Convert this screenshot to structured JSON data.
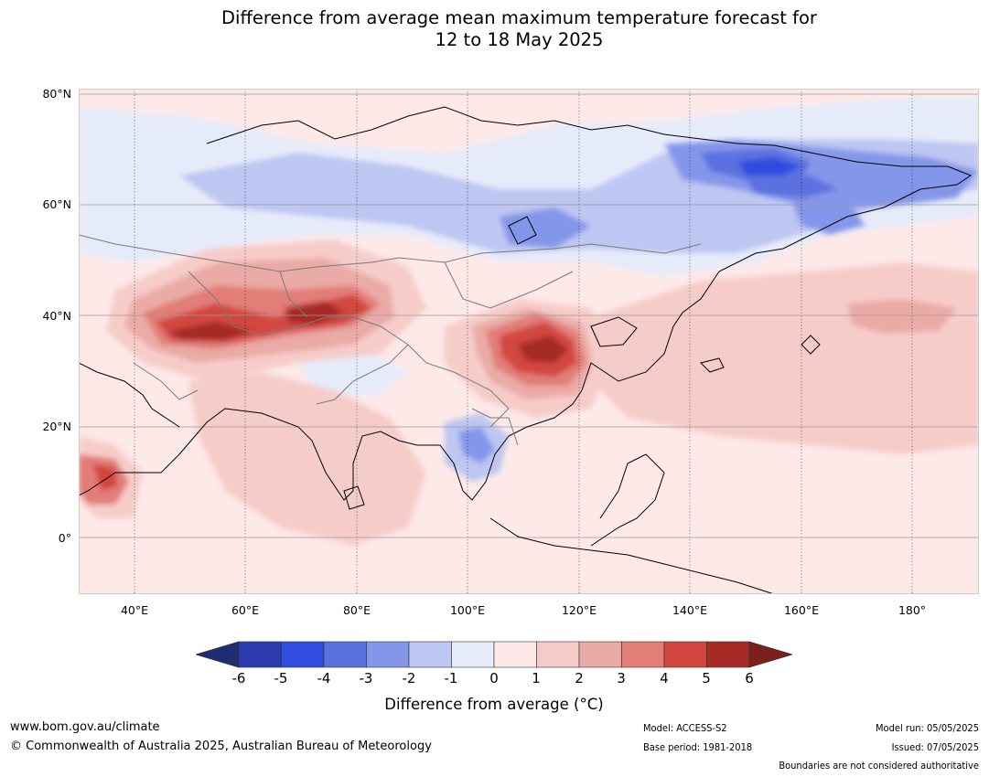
{
  "title": {
    "line1": "Difference from average mean maximum temperature forecast for",
    "line2": "12 to 18 May 2025"
  },
  "map": {
    "lat_labels": [
      "80°N",
      "60°N",
      "40°N",
      "20°N",
      "0°"
    ],
    "lon_labels": [
      "40°E",
      "60°E",
      "80°E",
      "100°E",
      "120°E",
      "140°E",
      "160°E",
      "180°"
    ],
    "extent": {
      "lon_min": 30,
      "lon_max": 192,
      "lat_min": -10,
      "lat_max": 81
    },
    "regions": [
      {
        "name": "Northern Siberia cool anomaly",
        "value": -3
      },
      {
        "name": "Eastern Siberia cool anomaly core",
        "value": -5
      },
      {
        "name": "Central Asia warm anomaly",
        "value": 5
      },
      {
        "name": "Eastern China warm anomaly",
        "value": 5
      },
      {
        "name": "Indochina cool anomaly",
        "value": -3
      },
      {
        "name": "Horn of Africa warm anomaly",
        "value": 4
      },
      {
        "name": "North Pacific warm anomaly",
        "value": 2
      }
    ]
  },
  "colorbar": {
    "ticks": [
      "-6",
      "-5",
      "-4",
      "-3",
      "-2",
      "-1",
      "0",
      "1",
      "2",
      "3",
      "4",
      "5",
      "6"
    ],
    "colors": [
      "#2b3aae",
      "#2f4ee0",
      "#5b71e0",
      "#8496ea",
      "#bec6f2",
      "#e6ebfa",
      "#fde9e8",
      "#f6ccc9",
      "#eaaaa6",
      "#e27d77",
      "#d2463f",
      "#a62a25"
    ],
    "under_color": "#1f2b73",
    "over_color": "#7d1f1c",
    "label": "Difference from average (°C)"
  },
  "footer": {
    "website": "www.bom.gov.au/climate",
    "copyright": "© Commonwealth of Australia 2025, Australian Bureau of Meteorology",
    "model": "Model: ACCESS-S2",
    "base_period": "Base period: 1981-2018",
    "model_run": "Model run: 05/05/2025",
    "issued": "Issued: 07/05/2025",
    "disclaimer": "Boundaries are not considered authoritative"
  }
}
